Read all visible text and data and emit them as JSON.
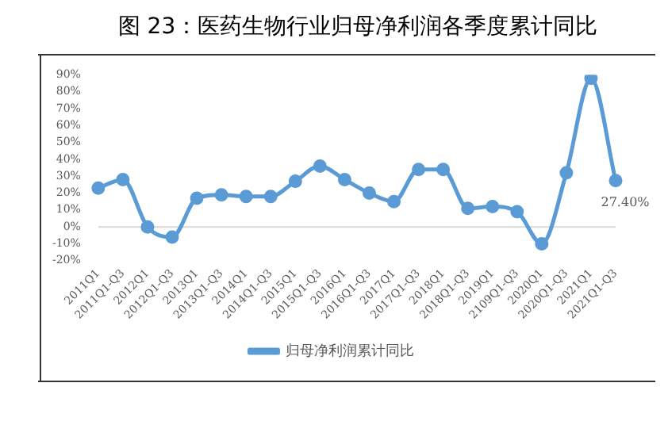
{
  "chart_data": {
    "type": "line",
    "title": "图 23：医药生物行业归母净利润各季度累计同比",
    "categories": [
      "2011Q1",
      "2011Q1-Q3",
      "2012Q1",
      "2012Q1-Q3",
      "2013Q1",
      "2013Q1-Q3",
      "2014Q1",
      "2014Q1-Q3",
      "2015Q1",
      "2015Q1-Q3",
      "2016Q1",
      "2016Q1-Q3",
      "2017Q1",
      "2017Q1-Q3",
      "2018Q1",
      "2018Q1-Q3",
      "2019Q1",
      "2109Q1-Q3",
      "2020Q1",
      "2020Q1-Q3",
      "2021Q1",
      "2021Q1-Q3"
    ],
    "series": [
      {
        "name": "归母净利润累计同比",
        "color": "#5b9bd5",
        "values": [
          23,
          28,
          0,
          -6,
          17,
          19,
          18,
          18,
          27,
          36,
          28,
          20,
          15,
          34,
          34,
          11,
          12,
          9,
          -10,
          32,
          88,
          27.4
        ],
        "value_labels": [
          null,
          null,
          null,
          null,
          null,
          null,
          null,
          null,
          null,
          null,
          null,
          null,
          null,
          null,
          null,
          null,
          null,
          null,
          null,
          null,
          null,
          "27.40%"
        ]
      }
    ],
    "ylim": [
      -20,
      90
    ],
    "yticks": [
      {
        "value": -20,
        "label": "-20%"
      },
      {
        "value": -10,
        "label": "-10%"
      },
      {
        "value": 0,
        "label": "0%"
      },
      {
        "value": 10,
        "label": "10%"
      },
      {
        "value": 20,
        "label": "20%"
      },
      {
        "value": 30,
        "label": "30%"
      },
      {
        "value": 40,
        "label": "40%"
      },
      {
        "value": 50,
        "label": "50%"
      },
      {
        "value": 60,
        "label": "60%"
      },
      {
        "value": 70,
        "label": "70%"
      },
      {
        "value": 80,
        "label": "80%"
      },
      {
        "value": 90,
        "label": "90%"
      }
    ],
    "ref_lines": [
      {
        "axis": "y",
        "value": 0,
        "color": "#d9d9d9"
      }
    ],
    "grid": false,
    "legend": "bottom",
    "marker": "circle",
    "line_style": "solid"
  }
}
